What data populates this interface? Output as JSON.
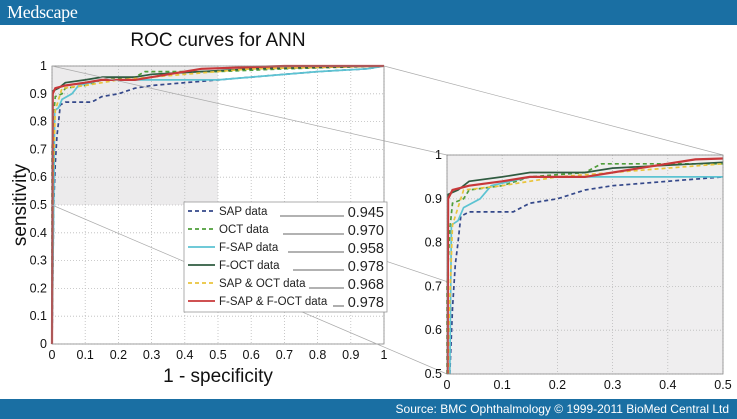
{
  "header": {
    "logo": "Medscape"
  },
  "footer": {
    "source": "Source: BMC Ophthalmology © 1999-2011 BioMed Central Ltd"
  },
  "chart_data": [
    {
      "type": "line",
      "title": "ROC curves for ANN",
      "xlabel": "1 - specificity",
      "ylabel": "sensitivity",
      "xlim": [
        0,
        1
      ],
      "ylim": [
        0,
        1
      ],
      "xticks": [
        "0",
        "0.1",
        "0.2",
        "0.3",
        "0.4",
        "0.5",
        "0.6",
        "0.7",
        "0.8",
        "0.9",
        "1"
      ],
      "yticks": [
        "0",
        "0.1",
        "0.2",
        "0.3",
        "0.4",
        "0.5",
        "0.6",
        "0.7",
        "0.8",
        "0.9",
        "1"
      ],
      "grid": true,
      "legend_placement": "bottom-right",
      "highlight_region": {
        "x": [
          0,
          0.5
        ],
        "y": [
          0.5,
          1
        ]
      },
      "series": [
        {
          "name": "SAP data",
          "auc": "0.945",
          "color": "#34488a",
          "dash": true,
          "points": [
            [
              0,
              0
            ],
            [
              0.005,
              0.5
            ],
            [
              0.01,
              0.65
            ],
            [
              0.015,
              0.75
            ],
            [
              0.02,
              0.8
            ],
            [
              0.025,
              0.86
            ],
            [
              0.04,
              0.87
            ],
            [
              0.12,
              0.87
            ],
            [
              0.15,
              0.89
            ],
            [
              0.2,
              0.9
            ],
            [
              0.25,
              0.92
            ],
            [
              0.3,
              0.93
            ],
            [
              0.4,
              0.94
            ],
            [
              0.5,
              0.95
            ],
            [
              0.6,
              0.96
            ],
            [
              0.8,
              0.98
            ],
            [
              0.95,
              0.99
            ],
            [
              1,
              1
            ]
          ]
        },
        {
          "name": "OCT data",
          "auc": "0.970",
          "color": "#4f9e3a",
          "dash": true,
          "points": [
            [
              0,
              0
            ],
            [
              0,
              0.7
            ],
            [
              0.005,
              0.83
            ],
            [
              0.01,
              0.89
            ],
            [
              0.03,
              0.9
            ],
            [
              0.04,
              0.92
            ],
            [
              0.1,
              0.93
            ],
            [
              0.15,
              0.95
            ],
            [
              0.25,
              0.96
            ],
            [
              0.28,
              0.98
            ],
            [
              0.5,
              0.98
            ],
            [
              0.7,
              0.99
            ],
            [
              1,
              1
            ]
          ]
        },
        {
          "name": "F-SAP  data",
          "auc": "0.958",
          "color": "#5cc3d2",
          "dash": false,
          "points": [
            [
              0,
              0
            ],
            [
              0.005,
              0.5
            ],
            [
              0.008,
              0.84
            ],
            [
              0.02,
              0.85
            ],
            [
              0.03,
              0.88
            ],
            [
              0.06,
              0.9
            ],
            [
              0.08,
              0.93
            ],
            [
              0.15,
              0.95
            ],
            [
              0.5,
              0.95
            ],
            [
              0.6,
              0.96
            ],
            [
              0.8,
              0.98
            ],
            [
              0.95,
              0.99
            ],
            [
              1,
              1
            ]
          ]
        },
        {
          "name": "F-OCT  data",
          "auc": "0.978",
          "color": "#2f5b40",
          "dash": false,
          "points": [
            [
              0,
              0
            ],
            [
              0.002,
              0.91
            ],
            [
              0.02,
              0.92
            ],
            [
              0.04,
              0.94
            ],
            [
              0.1,
              0.95
            ],
            [
              0.15,
              0.96
            ],
            [
              0.25,
              0.96
            ],
            [
              0.3,
              0.97
            ],
            [
              0.45,
              0.98
            ],
            [
              0.6,
              0.99
            ],
            [
              1,
              1
            ]
          ]
        },
        {
          "name": "SAP & OCT data",
          "auc": "0.968",
          "color": "#e9c43c",
          "dash": true,
          "points": [
            [
              0,
              0
            ],
            [
              0.003,
              0.6
            ],
            [
              0.01,
              0.84
            ],
            [
              0.02,
              0.88
            ],
            [
              0.03,
              0.92
            ],
            [
              0.1,
              0.93
            ],
            [
              0.15,
              0.94
            ],
            [
              0.2,
              0.95
            ],
            [
              0.3,
              0.96
            ],
            [
              0.4,
              0.97
            ],
            [
              0.6,
              0.99
            ],
            [
              1,
              1
            ]
          ]
        },
        {
          "name": "F-SAP & F-OCT data",
          "auc": "0.978",
          "color": "#c8383a",
          "dash": false,
          "points": [
            [
              0,
              0
            ],
            [
              0.002,
              0.9
            ],
            [
              0.01,
              0.92
            ],
            [
              0.04,
              0.93
            ],
            [
              0.1,
              0.94
            ],
            [
              0.15,
              0.95
            ],
            [
              0.25,
              0.95
            ],
            [
              0.35,
              0.97
            ],
            [
              0.45,
              0.99
            ],
            [
              0.7,
              1
            ],
            [
              1,
              1
            ]
          ]
        }
      ]
    },
    {
      "type": "line",
      "role": "zoomed inset of highlighted region",
      "xlim": [
        0,
        0.5
      ],
      "ylim": [
        0.5,
        1
      ],
      "xticks": [
        "0",
        "0.1",
        "0.2",
        "0.3",
        "0.4",
        "0.5"
      ],
      "yticks": [
        "0.5",
        "0.6",
        "0.7",
        "0.8",
        "0.9",
        "1"
      ],
      "grid": true
    }
  ]
}
